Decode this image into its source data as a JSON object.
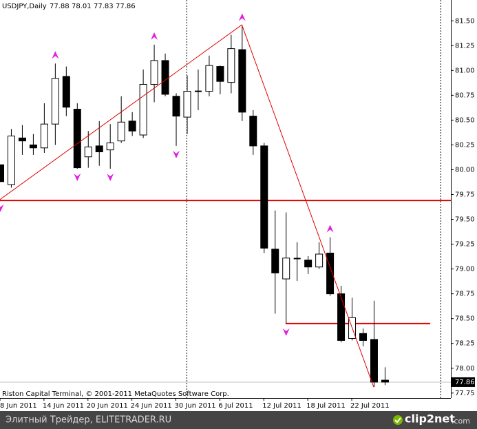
{
  "chart_data": {
    "type": "candlestick",
    "title": "USDJPY,Daily",
    "header_values": [
      77.88,
      78.01,
      77.83,
      77.86
    ],
    "copyright": "Riston Capital Terminal, © 2001-2011 MetaQuotes Software Corp.",
    "categories": [
      "8 Jun 2011",
      null,
      null,
      null,
      "14 Jun 2011",
      null,
      null,
      null,
      "20 Jun 2011",
      null,
      null,
      null,
      "24 Jun 2011",
      null,
      null,
      null,
      "30 Jun 2011",
      null,
      null,
      null,
      "6 Jul 2011",
      null,
      null,
      null,
      "12 Jul 2011",
      null,
      null,
      null,
      "18 Jul 2011",
      null,
      null,
      null,
      "22 Jul 2011",
      null,
      null,
      null
    ],
    "open": [
      80.05,
      79.85,
      80.32,
      80.25,
      80.22,
      80.46,
      80.94,
      80.61,
      80.13,
      80.24,
      80.2,
      80.29,
      80.49,
      80.35,
      80.86,
      81.1,
      80.74,
      80.53,
      80.79,
      80.79,
      81.04,
      80.88,
      81.21,
      80.54,
      80.24,
      79.2,
      78.9,
      79.11,
      79.09,
      79.02,
      79.16,
      78.75,
      78.3,
      78.35,
      78.29,
      77.88
    ],
    "high": [
      80.05,
      80.41,
      80.45,
      80.36,
      80.67,
      81.07,
      81.04,
      80.67,
      80.39,
      80.49,
      80.46,
      80.74,
      80.58,
      81.01,
      81.26,
      81.17,
      80.77,
      80.95,
      81.01,
      81.15,
      81.05,
      81.36,
      81.45,
      80.6,
      80.27,
      79.59,
      79.57,
      79.27,
      79.13,
      79.27,
      79.32,
      78.83,
      78.71,
      78.4,
      78.68,
      78.01
    ],
    "low": [
      79.88,
      79.82,
      80.15,
      80.15,
      80.17,
      80.25,
      80.54,
      80.01,
      80.02,
      80.04,
      80.01,
      80.27,
      80.34,
      80.32,
      80.68,
      80.74,
      80.24,
      80.36,
      80.6,
      80.74,
      80.76,
      80.77,
      80.49,
      80.15,
      79.16,
      78.55,
      78.45,
      78.88,
      78.95,
      79.0,
      78.73,
      78.26,
      78.28,
      78.22,
      77.81,
      77.83
    ],
    "close": [
      79.88,
      80.34,
      80.29,
      80.22,
      80.46,
      80.92,
      80.63,
      80.02,
      80.23,
      80.18,
      80.27,
      80.48,
      80.39,
      80.86,
      81.1,
      80.76,
      80.54,
      80.79,
      80.79,
      81.05,
      80.89,
      81.22,
      80.58,
      80.24,
      79.21,
      78.96,
      79.11,
      79.1,
      79.02,
      79.15,
      78.75,
      78.28,
      78.51,
      78.28,
      77.86,
      77.86
    ],
    "zigzag": [
      79.7,
      null,
      null,
      null,
      null,
      null,
      null,
      null,
      null,
      null,
      null,
      null,
      null,
      null,
      null,
      null,
      null,
      null,
      null,
      null,
      null,
      null,
      81.46,
      null,
      null,
      null,
      null,
      null,
      null,
      null,
      null,
      null,
      null,
      null,
      77.81,
      null
    ],
    "fractal_up": [
      null,
      null,
      null,
      null,
      null,
      81.07,
      null,
      null,
      null,
      null,
      null,
      null,
      null,
      null,
      81.26,
      null,
      null,
      null,
      null,
      null,
      null,
      null,
      81.45,
      null,
      null,
      null,
      null,
      null,
      null,
      null,
      79.32,
      null,
      null,
      null,
      null,
      null
    ],
    "fractal_down": [
      79.7,
      null,
      null,
      null,
      null,
      null,
      null,
      80.01,
      null,
      null,
      80.01,
      null,
      null,
      null,
      null,
      null,
      80.24,
      null,
      null,
      null,
      null,
      null,
      null,
      null,
      null,
      null,
      78.45,
      null,
      null,
      null,
      null,
      null,
      null,
      null,
      null,
      null
    ],
    "hlines": [
      79.69,
      78.45
    ],
    "last_price": 77.86,
    "ylim": [
      77.7,
      81.71
    ],
    "yticks": [
      {
        "value": 81.5,
        "label": "81.50"
      },
      81.25,
      {
        "value": 81,
        "label": "81.00"
      },
      80.75,
      {
        "value": 80.5,
        "label": "80.50"
      },
      80.25,
      {
        "value": 80,
        "label": "80.00"
      },
      79.75,
      {
        "value": 79.5,
        "label": "79.50"
      },
      79.25,
      {
        "value": 79,
        "label": "79.00"
      },
      78.75,
      {
        "value": 78.5,
        "label": "78.50"
      },
      78.25,
      {
        "value": 78,
        "label": "78.00"
      },
      77.75
    ],
    "colors": {
      "bull": "#ffffff",
      "bear": "#000000",
      "zigzag": "#e00000",
      "fractal": "#e020e0",
      "hline": "#e00000"
    }
  },
  "footer": {
    "site": "Элитный Трейдер, ELITETRADER.RU",
    "logo": "clip2net",
    "logo_suffix": ".com"
  }
}
